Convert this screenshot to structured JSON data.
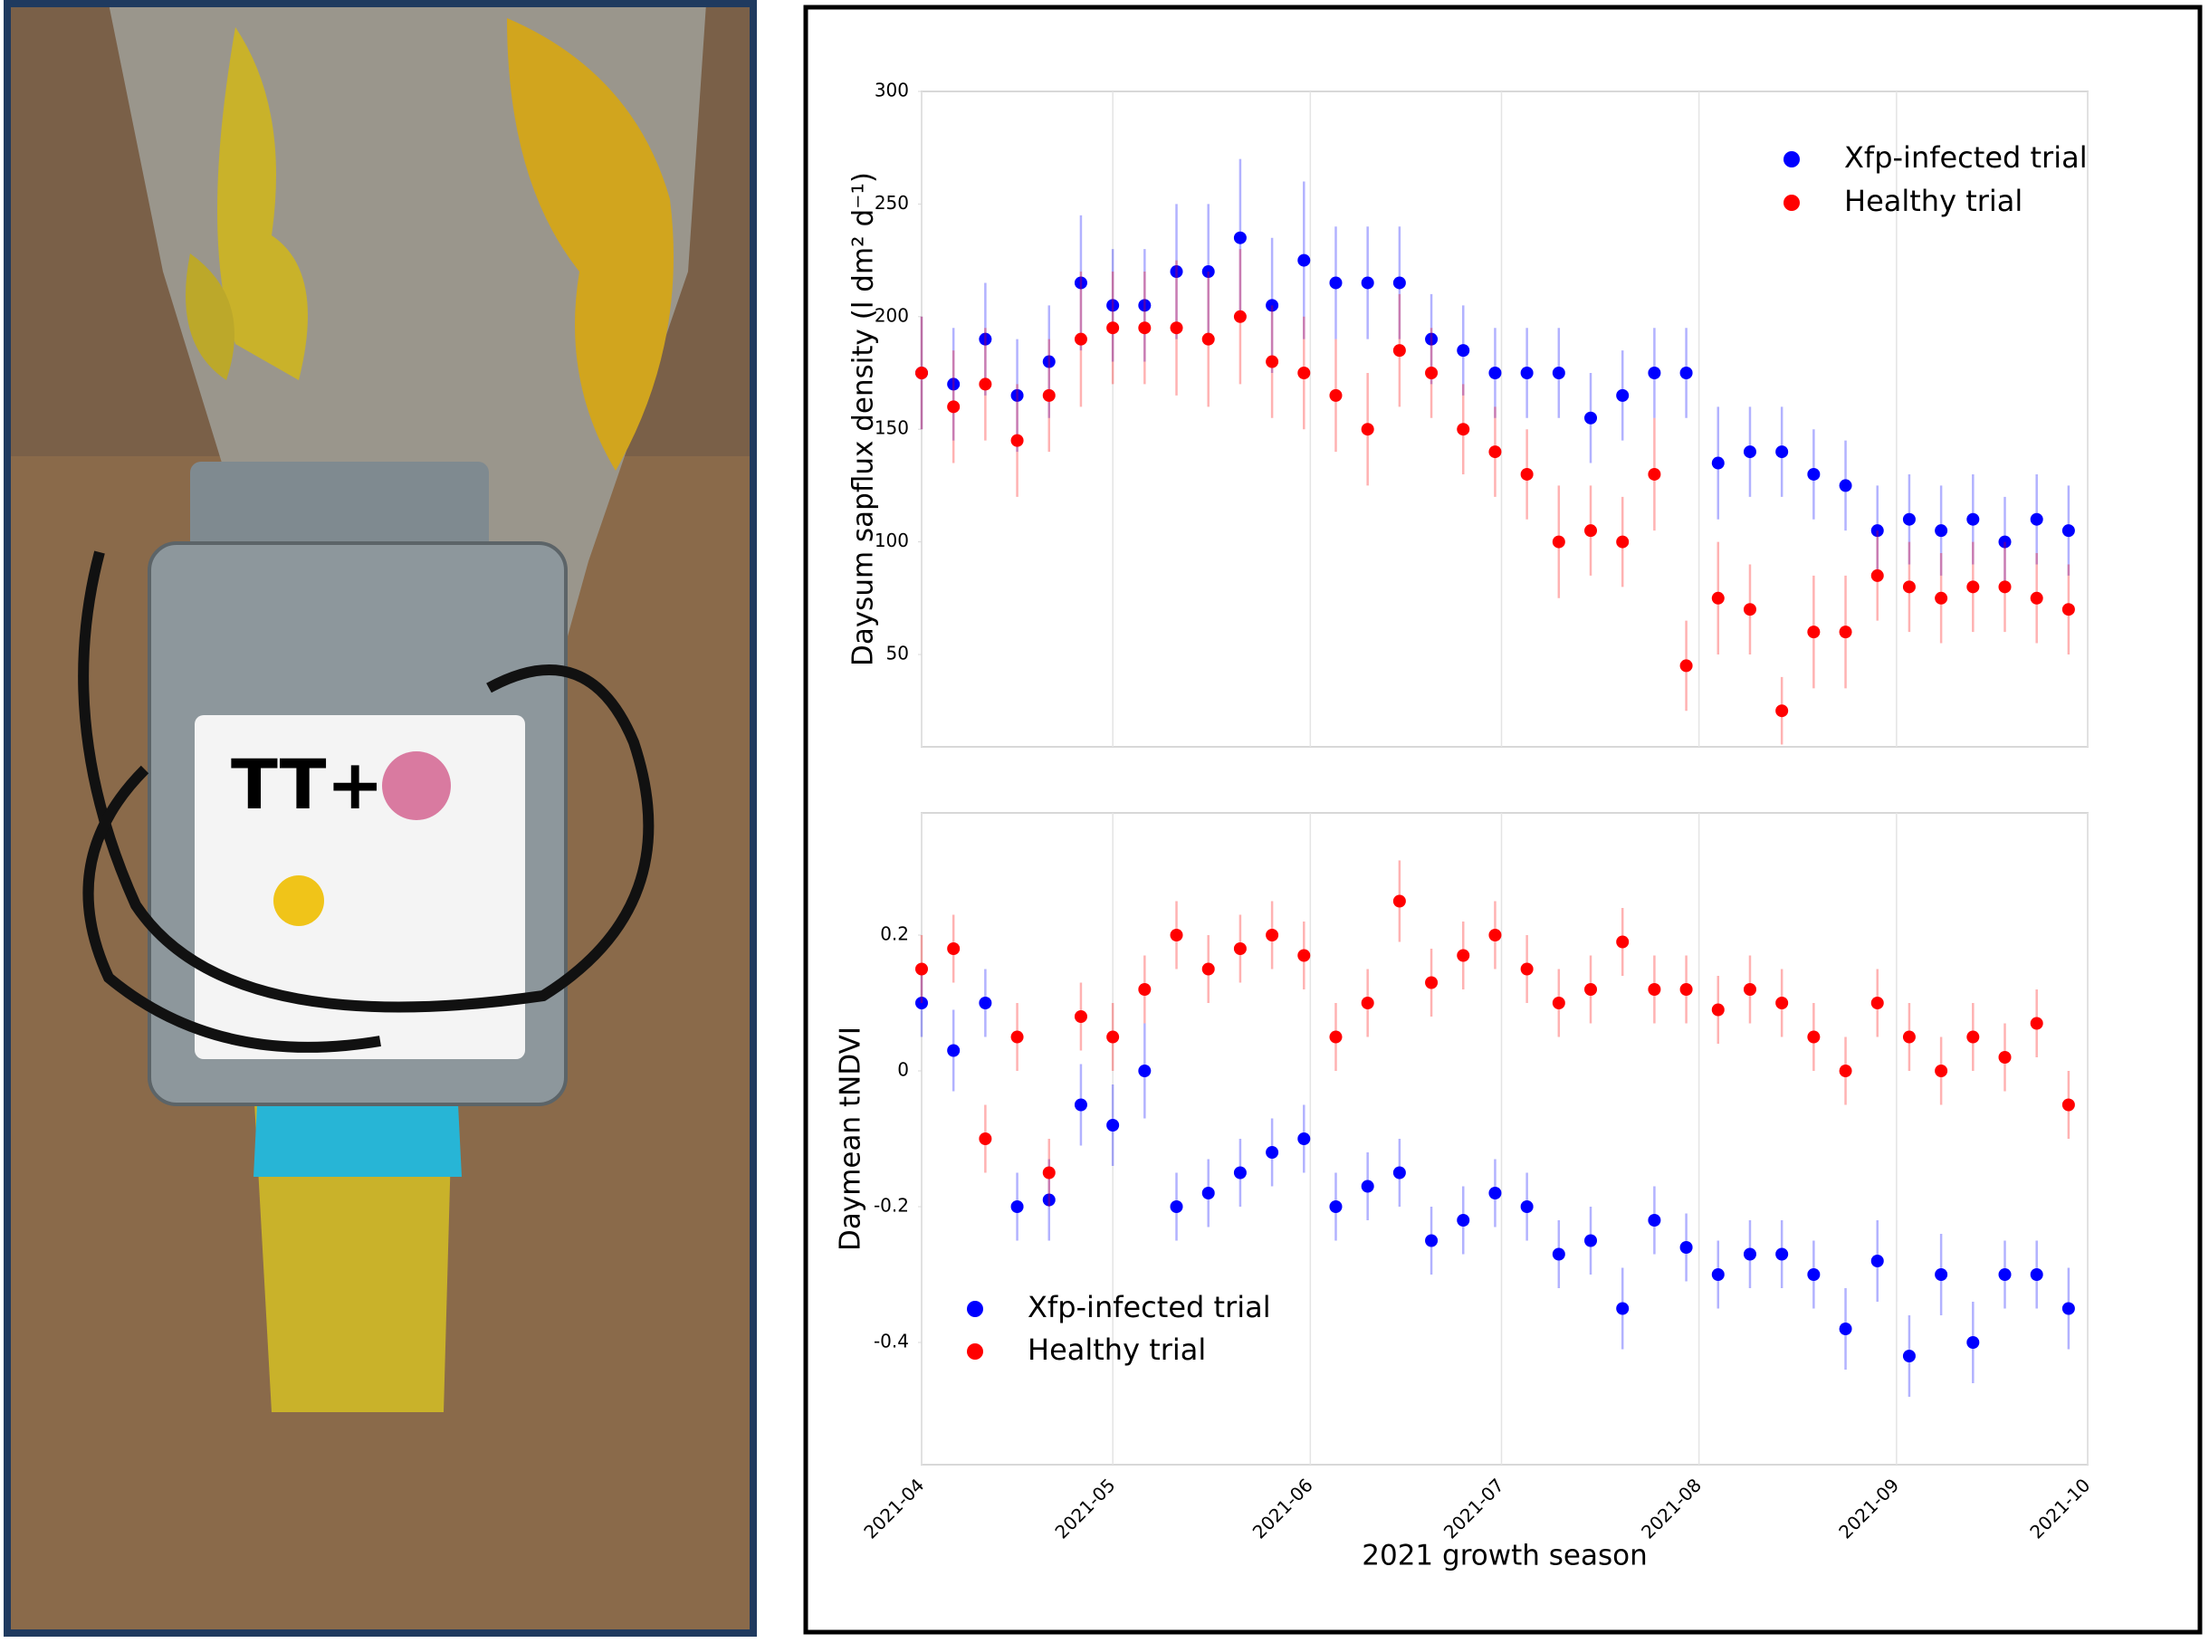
{
  "photo": {
    "device_label": "TT+"
  },
  "chart_data": [
    {
      "type": "scatter",
      "ylabel": "Daysum sapflux density (l dm² d⁻¹)",
      "x": [
        0,
        5,
        10,
        15,
        20,
        25,
        30,
        35,
        40,
        45,
        50,
        55,
        60,
        65,
        70,
        75,
        80,
        85,
        90,
        95,
        100,
        105,
        110,
        115,
        120,
        125,
        130,
        135,
        140,
        145,
        150,
        155,
        160,
        165,
        170,
        175,
        180
      ],
      "xlim": [
        0,
        183
      ],
      "xticks": [
        0,
        30,
        61,
        91,
        122,
        153,
        183
      ],
      "show_xtick_labels": false,
      "ylim": [
        9,
        300
      ],
      "yticks": [
        50,
        100,
        150,
        200,
        250,
        300
      ],
      "grid": "x",
      "legend": "upper right",
      "series": [
        {
          "name": "Xfp-infected trial",
          "color": "#0000ff",
          "values": [
            175,
            170,
            190,
            165,
            180,
            215,
            205,
            205,
            220,
            220,
            235,
            205,
            225,
            215,
            215,
            215,
            190,
            185,
            175,
            175,
            175,
            155,
            165,
            175,
            175,
            135,
            140,
            140,
            130,
            125,
            105,
            110,
            105,
            110,
            100,
            110,
            105
          ],
          "errors": [
            25,
            25,
            25,
            25,
            25,
            30,
            25,
            25,
            30,
            30,
            35,
            30,
            35,
            25,
            25,
            25,
            20,
            20,
            20,
            20,
            20,
            20,
            20,
            20,
            20,
            25,
            20,
            20,
            20,
            20,
            20,
            20,
            20,
            20,
            20,
            20,
            20
          ]
        },
        {
          "name": "Healthy trial",
          "color": "#ff0000",
          "values": [
            175,
            160,
            170,
            145,
            165,
            190,
            195,
            195,
            195,
            190,
            200,
            180,
            175,
            165,
            150,
            185,
            175,
            150,
            140,
            130,
            100,
            105,
            100,
            130,
            45,
            75,
            70,
            25,
            60,
            60,
            85,
            80,
            75,
            80,
            80,
            75,
            70
          ],
          "errors": [
            25,
            25,
            25,
            25,
            25,
            30,
            25,
            25,
            30,
            30,
            30,
            25,
            25,
            25,
            25,
            25,
            20,
            20,
            20,
            20,
            25,
            20,
            20,
            25,
            20,
            25,
            20,
            15,
            25,
            25,
            20,
            20,
            20,
            20,
            20,
            20,
            20
          ]
        }
      ]
    },
    {
      "type": "scatter",
      "ylabel": "Daymean tNDVI",
      "xlabel": "2021 growth season",
      "x": [
        0,
        5,
        10,
        15,
        20,
        25,
        30,
        35,
        40,
        45,
        50,
        55,
        60,
        65,
        70,
        75,
        80,
        85,
        90,
        95,
        100,
        105,
        110,
        115,
        120,
        125,
        130,
        135,
        140,
        145,
        150,
        155,
        160,
        165,
        170,
        175,
        180
      ],
      "xlim": [
        0,
        183
      ],
      "xticks": [
        {
          "value": 0,
          "label": "2021-04"
        },
        {
          "value": 30,
          "label": "2021-05"
        },
        {
          "value": 61,
          "label": "2021-06"
        },
        {
          "value": 91,
          "label": "2021-07"
        },
        {
          "value": 122,
          "label": "2021-08"
        },
        {
          "value": 153,
          "label": "2021-09"
        },
        {
          "value": 183,
          "label": "2021-10"
        }
      ],
      "show_xtick_labels": true,
      "ylim": [
        -0.58,
        0.38
      ],
      "yticks": [
        -0.4,
        -0.2,
        0.0,
        0.2
      ],
      "grid": "x",
      "legend": "lower left",
      "series": [
        {
          "name": "Xfp-infected trial",
          "color": "#0000ff",
          "values": [
            0.1,
            0.03,
            0.1,
            -0.2,
            -0.19,
            -0.05,
            -0.08,
            0.0,
            -0.2,
            -0.18,
            -0.15,
            -0.12,
            -0.1,
            -0.2,
            -0.17,
            -0.15,
            -0.25,
            -0.22,
            -0.18,
            -0.2,
            -0.27,
            -0.25,
            -0.35,
            -0.22,
            -0.26,
            -0.3,
            -0.27,
            -0.27,
            -0.3,
            -0.38,
            -0.28,
            -0.42,
            -0.3,
            -0.4,
            -0.3,
            -0.3,
            -0.35
          ],
          "errors": [
            0.05,
            0.06,
            0.05,
            0.05,
            0.06,
            0.06,
            0.06,
            0.07,
            0.05,
            0.05,
            0.05,
            0.05,
            0.05,
            0.05,
            0.05,
            0.05,
            0.05,
            0.05,
            0.05,
            0.05,
            0.05,
            0.05,
            0.06,
            0.05,
            0.05,
            0.05,
            0.05,
            0.05,
            0.05,
            0.06,
            0.06,
            0.06,
            0.06,
            0.06,
            0.05,
            0.05,
            0.06
          ]
        },
        {
          "name": "Healthy trial",
          "color": "#ff0000",
          "values": [
            0.15,
            0.18,
            -0.1,
            0.05,
            -0.15,
            0.08,
            0.05,
            0.12,
            0.2,
            0.15,
            0.18,
            0.2,
            0.17,
            0.05,
            0.1,
            0.25,
            0.13,
            0.17,
            0.2,
            0.15,
            0.1,
            0.12,
            0.19,
            0.12,
            0.12,
            0.09,
            0.12,
            0.1,
            0.05,
            0.0,
            0.1,
            0.05,
            0.0,
            0.05,
            0.02,
            0.07,
            -0.05
          ],
          "errors": [
            0.05,
            0.05,
            0.05,
            0.05,
            0.05,
            0.05,
            0.05,
            0.05,
            0.05,
            0.05,
            0.05,
            0.05,
            0.05,
            0.05,
            0.05,
            0.06,
            0.05,
            0.05,
            0.05,
            0.05,
            0.05,
            0.05,
            0.05,
            0.05,
            0.05,
            0.05,
            0.05,
            0.05,
            0.05,
            0.05,
            0.05,
            0.05,
            0.05,
            0.05,
            0.05,
            0.05,
            0.05
          ]
        }
      ]
    }
  ]
}
